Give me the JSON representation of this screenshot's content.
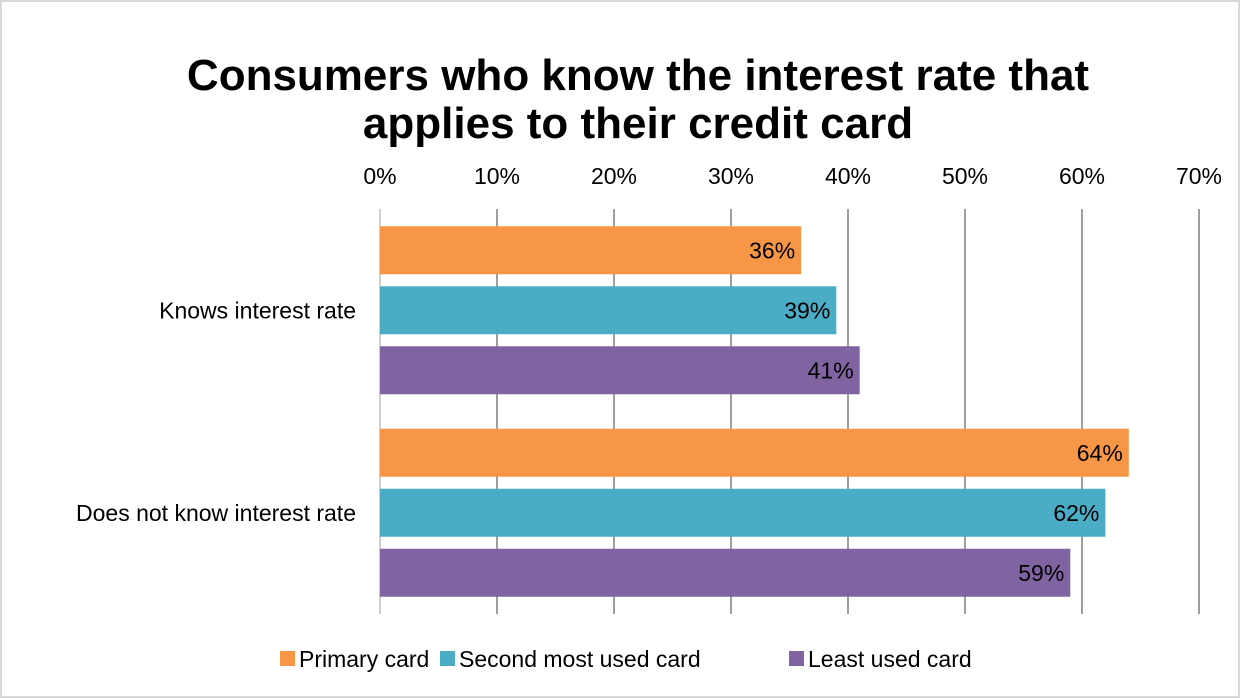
{
  "chart_data": {
    "type": "bar",
    "orientation": "horizontal",
    "title": "Consumers who know the interest rate that applies to their credit card",
    "title_lines": [
      "Consumers who know the interest rate that",
      "applies to their credit card"
    ],
    "categories": [
      "Knows interest rate",
      "Does not know interest rate"
    ],
    "series": [
      {
        "name": "Primary card",
        "color": "#f79646",
        "values": [
          36,
          64
        ],
        "labels": [
          "36%",
          "64%"
        ]
      },
      {
        "name": "Second most used card",
        "color": "#4bacc6",
        "values": [
          39,
          62
        ],
        "labels": [
          "39%",
          "62%"
        ]
      },
      {
        "name": "Least used card",
        "color": "#8064a2",
        "values": [
          41,
          59
        ],
        "labels": [
          "41%",
          "59%"
        ]
      }
    ],
    "xlim": [
      0,
      70
    ],
    "xticks": [
      0,
      10,
      20,
      30,
      40,
      50,
      60,
      70
    ],
    "xtick_labels": [
      "0%",
      "10%",
      "20%",
      "30%",
      "40%",
      "50%",
      "60%",
      "70%"
    ],
    "x_axis_position": "top",
    "grid": true,
    "legend_position": "bottom"
  }
}
